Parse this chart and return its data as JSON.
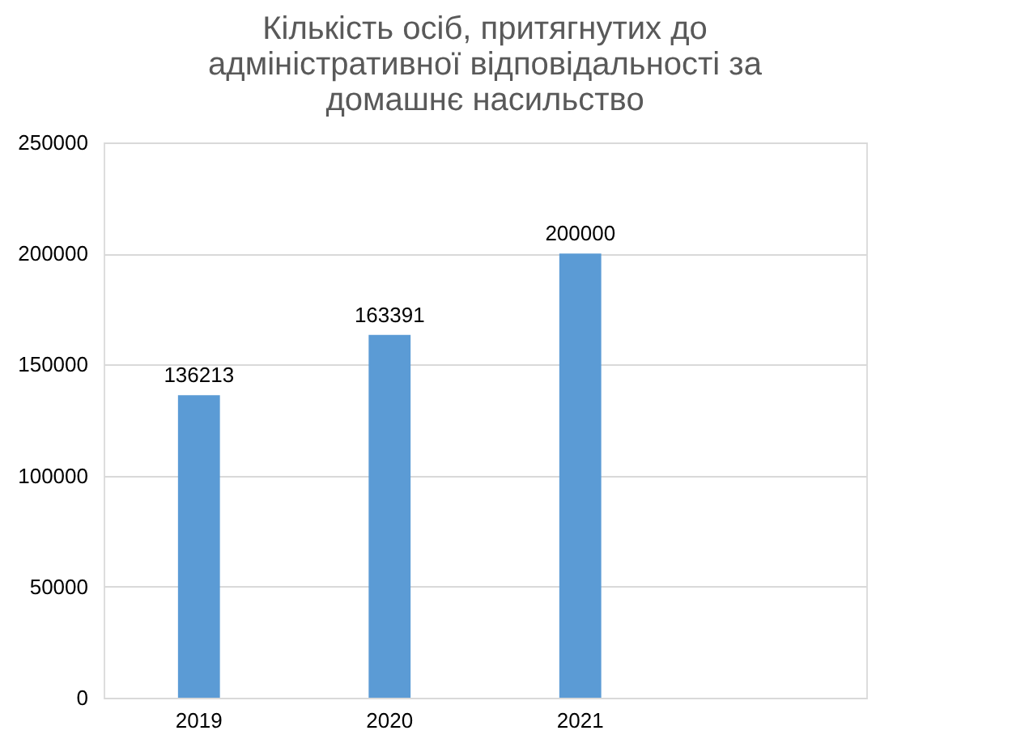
{
  "chart_data": {
    "type": "bar",
    "title": [
      "Кількість осіб, притягнутих до",
      "адміністративної відповідальності за",
      "домашнє насильство"
    ],
    "categories": [
      "2019",
      "2020",
      "2021",
      null
    ],
    "values": [
      136213,
      163391,
      200000,
      null
    ],
    "color": "#5b9bd5",
    "ylim": [
      0,
      250000
    ],
    "yticks": [
      0,
      50000,
      100000,
      150000,
      200000,
      250000
    ],
    "grid": "y",
    "data_labels": true
  }
}
